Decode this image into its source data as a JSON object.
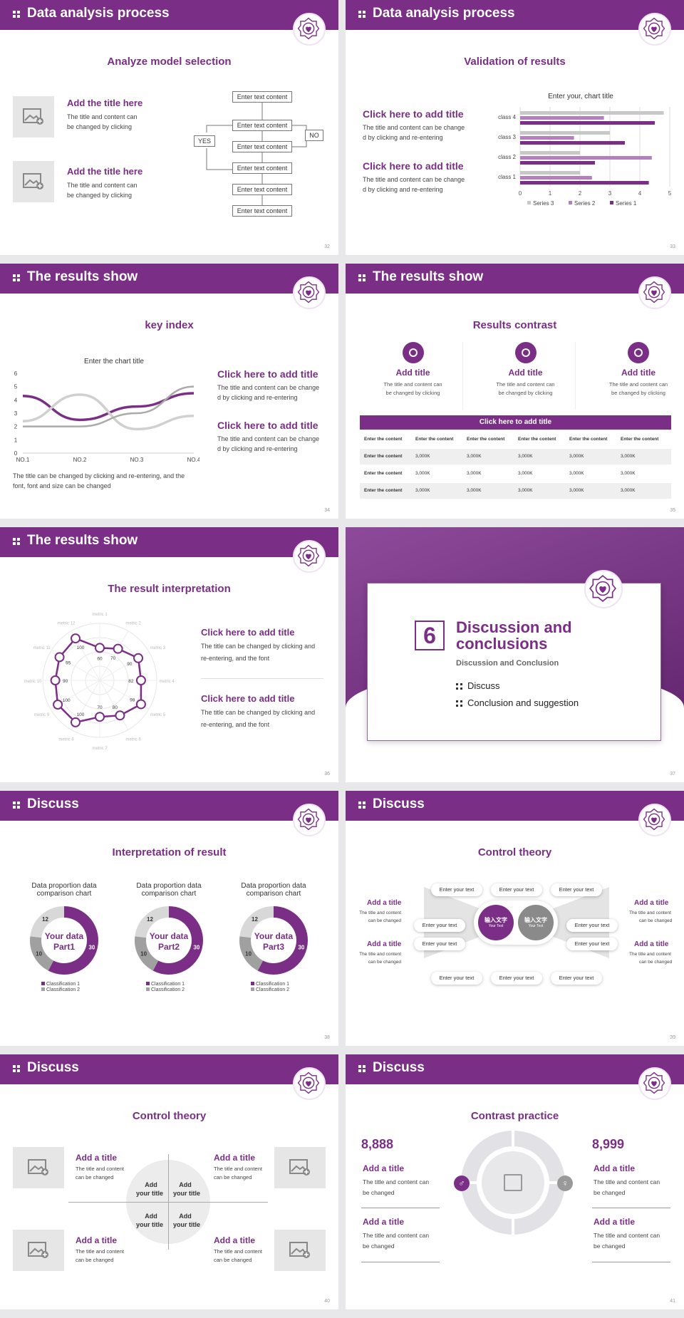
{
  "colors": {
    "accent": "#7a2e86",
    "light_accent": "#b57fbf",
    "grey": "#c8c8c8"
  },
  "s1": {
    "header": "Data analysis process",
    "subtitle": "Analyze model selection",
    "items": [
      {
        "title": "Add the title here",
        "text1": "The title and content can",
        "text2": "be changed by clicking"
      },
      {
        "title": "Add the title here",
        "text1": "The title and content can",
        "text2": "be changed by clicking"
      }
    ],
    "flow": {
      "boxes": [
        "Enter text content",
        "Enter text content",
        "Enter text content",
        "Enter text content",
        "Enter text content",
        "Enter text content"
      ],
      "yes": "YES",
      "no": "NO"
    },
    "page": "32"
  },
  "s2": {
    "header": "Data analysis process",
    "subtitle": "Validation of results",
    "items": [
      {
        "title": "Click here to add title",
        "text1": "The title and content can be change",
        "text2": "d by clicking and re-entering"
      },
      {
        "title": "Click here to add title",
        "text1": "The title and content can be change",
        "text2": "d by clicking and re-entering"
      }
    ],
    "page": "33"
  },
  "s3": {
    "header": "The results show",
    "subtitle": "key index",
    "items": [
      {
        "title": "Click here to add title",
        "text1": "The title and content can be change",
        "text2": "d by clicking and re-entering"
      },
      {
        "title": "Click here to add title",
        "text1": "The title and content can be change",
        "text2": "d by clicking and re-entering"
      }
    ],
    "note1": "The title can be changed by clicking and re-entering, and the",
    "note2": "font, font and size can be changed",
    "page": "34"
  },
  "s4": {
    "header": "The results show",
    "subtitle": "Results contrast",
    "cards": [
      {
        "title": "Add title",
        "text1": "The title and content can",
        "text2": "be changed by clicking"
      },
      {
        "title": "Add title",
        "text1": "The title and content can",
        "text2": "be changed by clicking"
      },
      {
        "title": "Add title",
        "text1": "The title and content can",
        "text2": "be changed by clicking"
      }
    ],
    "table": {
      "title": "Click here to add title",
      "headers": [
        "Enter the content",
        "Enter the content",
        "Enter the content",
        "Enter the content",
        "Enter the content",
        "Enter the content"
      ],
      "rows": [
        [
          "Enter the content",
          "3,000K",
          "3,000K",
          "3,000K",
          "3,000K",
          "3,000K"
        ],
        [
          "Enter the content",
          "3,000K",
          "3,000K",
          "3,000K",
          "3,000K",
          "3,000K"
        ],
        [
          "Enter the content",
          "3,000K",
          "3,000K",
          "3,000K",
          "3,000K",
          "3,000K"
        ]
      ]
    },
    "page": "35"
  },
  "s5": {
    "header": "The results show",
    "subtitle": "The result interpretation",
    "items": [
      {
        "title": "Click here to add  title",
        "text1": "The title can be changed by clicking and",
        "text2": "re-entering, and the font"
      },
      {
        "title": "Click here to add  title",
        "text1": "The title can be changed by clicking and",
        "text2": "re-entering, and the font"
      }
    ],
    "page": "36"
  },
  "s6": {
    "number": "6",
    "title1": "Discussion and",
    "title2": "conclusions",
    "subtitle": "Discussion and Conclusion",
    "bullets": [
      "Discuss",
      "Conclusion and suggestion"
    ],
    "page": "37"
  },
  "s7": {
    "header": "Discuss",
    "subtitle": "Interpretation of result",
    "donuts": [
      {
        "title1": "Data proportion data",
        "title2": "comparison chart",
        "center1": "Your data",
        "center2": "Part1"
      },
      {
        "title1": "Data proportion data",
        "title2": "comparison chart",
        "center1": "Your data",
        "center2": "Part2"
      },
      {
        "title1": "Data proportion data",
        "title2": "comparison chart",
        "center1": "Your data",
        "center2": "Part3"
      }
    ],
    "legend": [
      "Classification 1",
      "Classification 2"
    ],
    "page": "38"
  },
  "s8": {
    "header": "Discuss",
    "subtitle": "Control theory",
    "left": [
      {
        "title": "Add a title",
        "text1": "The title and content",
        "text2": "can be changed"
      },
      {
        "title": "Add a title",
        "text1": "The title and content",
        "text2": "can be changed"
      }
    ],
    "right": [
      {
        "title": "Add a title",
        "text1": "The title and content",
        "text2": "can be changed"
      },
      {
        "title": "Add a title",
        "text1": "The title and content",
        "text2": "can be changed"
      }
    ],
    "pills": [
      "Enter your text",
      "Enter your text",
      "Enter your text",
      "Enter your text",
      "Enter your text",
      "Enter your text",
      "Enter your text",
      "Enter your text",
      "Enter your text",
      "Enter your text"
    ],
    "c1a": "输入文字",
    "c1b": "Your Text",
    "c2a": "输入文字",
    "c2b": "Your Text",
    "page": "39"
  },
  "s9": {
    "header": "Discuss",
    "subtitle": "Control theory",
    "items": [
      {
        "title": "Add a title",
        "text1": "The title and content",
        "text2": "can be changed"
      },
      {
        "title": "Add a title",
        "text1": "The title and content",
        "text2": "can be changed"
      },
      {
        "title": "Add a title",
        "text1": "The title and content",
        "text2": "can be changed"
      },
      {
        "title": "Add a title",
        "text1": "The title and content",
        "text2": "can be changed"
      }
    ],
    "quad": [
      [
        "Add",
        "your title"
      ],
      [
        "Add",
        "your title"
      ],
      [
        "Add",
        "your title"
      ],
      [
        "Add",
        "your title"
      ]
    ],
    "page": "40"
  },
  "s10": {
    "header": "Discuss",
    "subtitle": "Contrast practice",
    "left": {
      "number": "8,888",
      "items": [
        {
          "title": "Add a title",
          "text1": "The title and content can",
          "text2": "be changed"
        },
        {
          "title": "Add a title",
          "text1": "The title and content can",
          "text2": "be changed"
        }
      ]
    },
    "right": {
      "number": "8,999",
      "items": [
        {
          "title": "Add a title",
          "text1": "The title and content can",
          "text2": "be changed"
        },
        {
          "title": "Add a title",
          "text1": "The title and content can",
          "text2": "be changed"
        }
      ]
    },
    "page": "41"
  },
  "chart_data": [
    {
      "type": "bar",
      "orientation": "horizontal",
      "title": "Enter your, chart title",
      "categories": [
        "class 1",
        "class 2",
        "class 3",
        "class 4"
      ],
      "series": [
        {
          "name": "Series 1",
          "values": [
            4.3,
            2.5,
            3.5,
            4.5
          ]
        },
        {
          "name": "Series 2",
          "values": [
            2.4,
            4.4,
            1.8,
            2.8
          ]
        },
        {
          "name": "Series 3",
          "values": [
            2,
            2,
            3,
            4.8
          ]
        }
      ],
      "xlim": [
        0,
        5
      ],
      "xticks": [
        0,
        1,
        2,
        3,
        4,
        5
      ],
      "legend": "bottom"
    },
    {
      "type": "line",
      "title": "Enter the chart title",
      "categories": [
        "NO.1",
        "NO.2",
        "NO.3",
        "NO.4"
      ],
      "series": [
        {
          "values": [
            4.3,
            2.5,
            3.5,
            4.5
          ]
        },
        {
          "values": [
            2.4,
            4.4,
            1.8,
            2.8
          ]
        },
        {
          "values": [
            2,
            2,
            3,
            5
          ]
        }
      ],
      "ylim": [
        0,
        6
      ],
      "yticks": [
        0,
        1,
        2,
        3,
        4,
        5,
        6
      ]
    },
    {
      "type": "radar",
      "axes": [
        "metric 1",
        "metric 2",
        "metric 3",
        "metric 4",
        "metric 5",
        "metric 6",
        "metric 7",
        "metric 8",
        "metric 9",
        "metric 10",
        "metric 11",
        "metric 12"
      ],
      "values": [
        60,
        70,
        90,
        82,
        98,
        80,
        70,
        100,
        100,
        90,
        95,
        100
      ]
    },
    {
      "type": "pie",
      "values": [
        30,
        10,
        12
      ]
    },
    {
      "type": "pie",
      "values": [
        30,
        10,
        12
      ]
    },
    {
      "type": "pie",
      "values": [
        30,
        10,
        12
      ]
    }
  ]
}
